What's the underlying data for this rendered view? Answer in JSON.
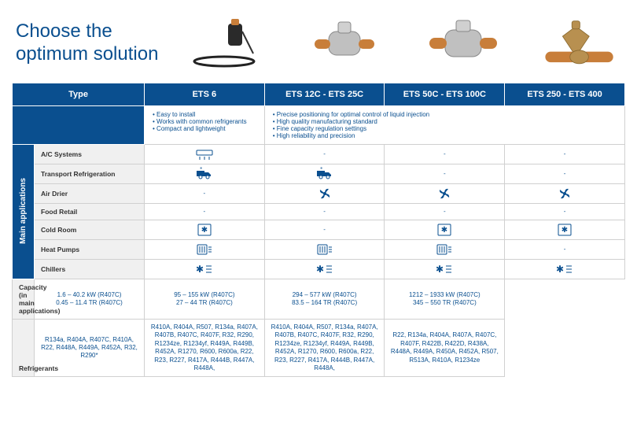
{
  "colors": {
    "brand_blue": "#0a4f8f",
    "text_blue": "#0a4f8f",
    "label_bg": "#f0f0f0",
    "border": "#d0d0d0",
    "white": "#ffffff",
    "copper": "#c87e3a",
    "brass": "#b89050",
    "steel": "#b8b8b8"
  },
  "header": {
    "title_line1": "Choose the",
    "title_line2": "optimum solution"
  },
  "table": {
    "header_type": "Type",
    "columns": [
      "ETS 6",
      "ETS 12C - ETS 25C",
      "ETS 50C - ETS 100C",
      "ETS 250 - ETS 400"
    ],
    "features_col1": [
      "Easy to install",
      "Works with common refrigerants",
      "Compact and lightweight"
    ],
    "features_col234": [
      "Precise positioning for optimal control of liquid injection",
      "High quality manufacturing standard",
      "Fine capacity regulation settings",
      "High reliability and precision"
    ],
    "vertical_label": "Main applications",
    "rows": [
      {
        "label": "A/C Systems",
        "cells": [
          "icon:ac",
          "-",
          "-",
          "-"
        ]
      },
      {
        "label": "Transport Refrigeration",
        "cells": [
          "icon:truck",
          "icon:truck",
          "-",
          "-"
        ]
      },
      {
        "label": "Air Drier",
        "cells": [
          "-",
          "icon:fan",
          "icon:fan",
          "icon:fan"
        ]
      },
      {
        "label": "Food Retail",
        "cells": [
          "-",
          "-",
          "-",
          "-"
        ]
      },
      {
        "label": "Cold Room",
        "cells": [
          "icon:snow",
          "-",
          "icon:snow",
          "icon:snow"
        ]
      },
      {
        "label": "Heat Pumps",
        "cells": [
          "icon:heat",
          "icon:heat",
          "icon:heat",
          "-"
        ]
      },
      {
        "label": "Chillers",
        "cells": [
          "icon:chill",
          "icon:chill",
          "icon:chill",
          "icon:chill"
        ]
      }
    ],
    "capacity_label": "Capacity\n(in main applications)",
    "capacity": [
      "1.6  –  40.2 kW (R407C)\n0.45 – 11.4 TR (R407C)",
      "95 – 155 kW (R407C)\n27 – 44 TR (R407C)",
      "294  –  577 kW (R407C)\n83.5 – 164 TR (R407C)",
      "1212 – 1933 kW (R407C)\n345 – 550 TR (R407C)"
    ],
    "refrigerants_label": "Refrigerants",
    "refrigerants": [
      "R134a, R404A, R407C, R410A, R22, R448A, R449A, R452A, R32, R290*",
      "R410A, R404A, R507, R134a, R407A, R407B, R407C, R407F, R32, R290, R1234ze, R1234yf, R449A, R449B, R452A, R1270, R600, R600a, R22, R23, R227, R417A, R444B, R447A, R448A,",
      "R410A, R404A, R507, R134a, R407A, R407B, R407C, R407F, R32, R290, R1234ze, R1234yf, R449A, R449B, R452A, R1270, R600, R600a, R22, R23, R227, R417A, R444B, R447A, R448A,",
      "R22, R134a, R404A, R407A, R407C, R407F, R422B, R422D, R438A, R448A, R449A, R450A, R452A, R507, R513A, R410A, R1234ze"
    ]
  }
}
